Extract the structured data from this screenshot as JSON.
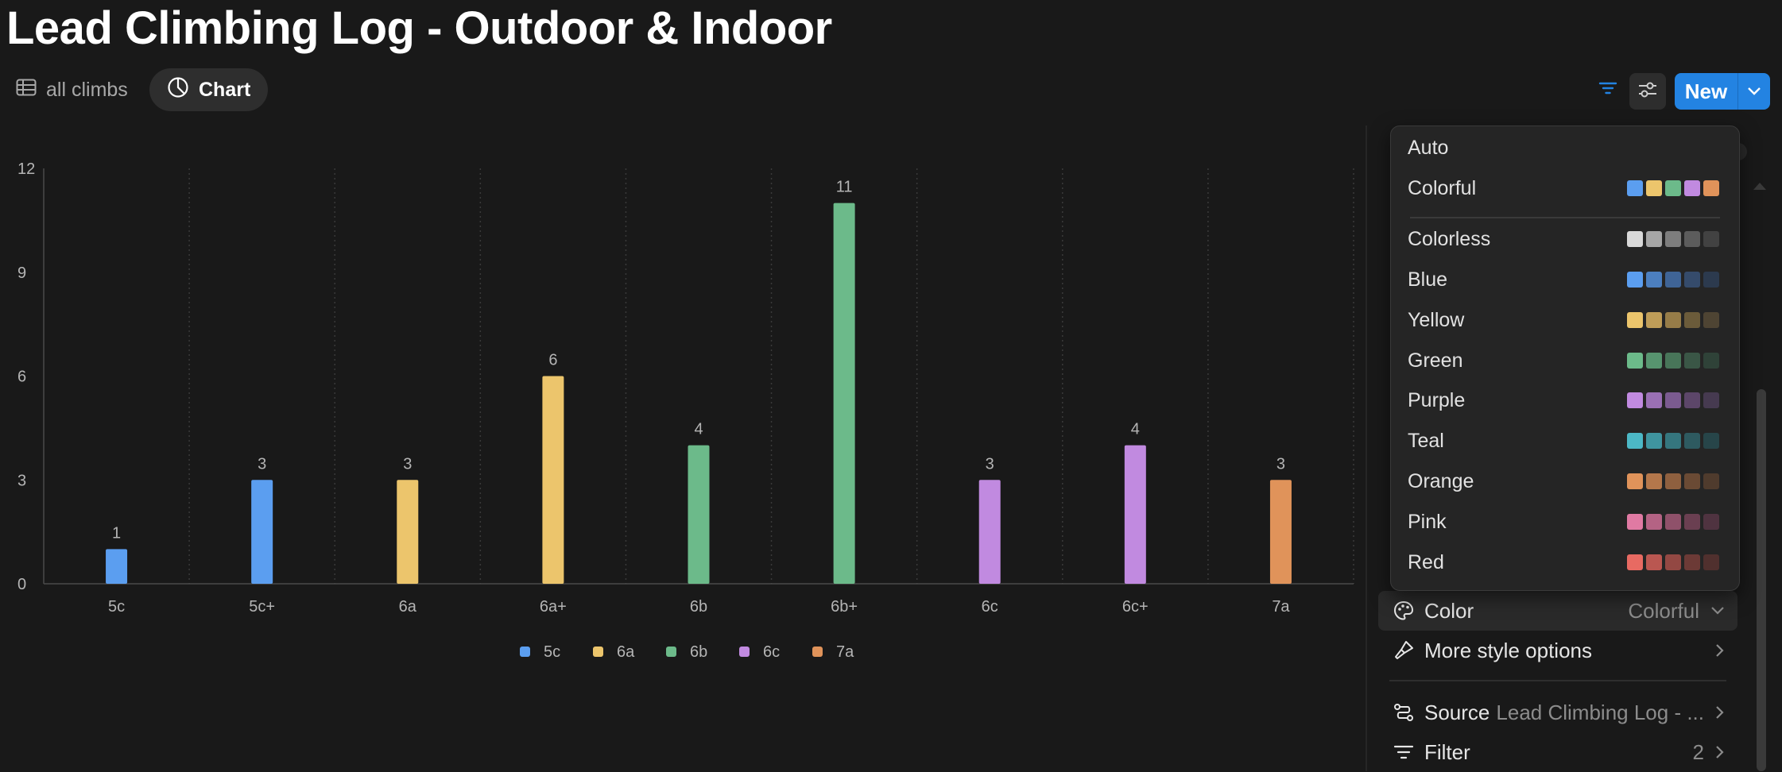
{
  "page": {
    "title": "Lead Climbing Log - Outdoor & Indoor"
  },
  "tabs": [
    {
      "label": "all climbs",
      "icon": "table-icon"
    },
    {
      "label": "Chart",
      "icon": "pie-chart-icon"
    }
  ],
  "toolbar": {
    "filter_icon": "filter-icon",
    "settings_icon": "sliders-icon",
    "new_label": "New"
  },
  "chart_data": {
    "type": "bar",
    "categories": [
      "5c",
      "5c+",
      "6a",
      "6a+",
      "6b",
      "6b+",
      "6c",
      "6c+",
      "7a"
    ],
    "values": [
      1,
      3,
      3,
      6,
      4,
      11,
      3,
      4,
      3
    ],
    "ylim": [
      0,
      12
    ],
    "yticks": [
      0,
      3,
      6,
      9,
      12
    ],
    "bar_colors": [
      "#5b9ef0",
      "#5b9ef0",
      "#ecc56c",
      "#ecc56c",
      "#6cba8a",
      "#6cba8a",
      "#c18ae0",
      "#c18ae0",
      "#e0935a"
    ],
    "legend": [
      {
        "label": "5c",
        "color": "#5b9ef0"
      },
      {
        "label": "6a",
        "color": "#ecc56c"
      },
      {
        "label": "6b",
        "color": "#6cba8a"
      },
      {
        "label": "6c",
        "color": "#c18ae0"
      },
      {
        "label": "7a",
        "color": "#e0935a"
      }
    ],
    "legend_position": "bottom-center",
    "grid": "vertical dotted"
  },
  "color_menu": {
    "items": [
      {
        "name": "Auto",
        "swatches": []
      },
      {
        "name": "Colorful",
        "swatches": [
          "#5b9ef0",
          "#ecc56c",
          "#6cba8a",
          "#c18ae0",
          "#e0935a"
        ]
      },
      {
        "name": "Colorless",
        "swatches": [
          "#d9d9d9",
          "#a6a6a6",
          "#7d7d7d",
          "#5c5c5c",
          "#424242"
        ]
      },
      {
        "name": "Blue",
        "swatches": [
          "#5b9ef0",
          "#4c7fbf",
          "#3f6496",
          "#354b6b",
          "#2c3a4e"
        ]
      },
      {
        "name": "Yellow",
        "swatches": [
          "#ecc56c",
          "#bf9d58",
          "#967c48",
          "#6b5b3a",
          "#4e4433"
        ]
      },
      {
        "name": "Green",
        "swatches": [
          "#6cba8a",
          "#57946f",
          "#487559",
          "#3a5646",
          "#2f4238"
        ]
      },
      {
        "name": "Purple",
        "swatches": [
          "#c18ae0",
          "#9a70b4",
          "#7b5b90",
          "#5c4669",
          "#463a50"
        ]
      },
      {
        "name": "Teal",
        "swatches": [
          "#4cb8c6",
          "#3f949f",
          "#35767e",
          "#2e5a60",
          "#274549"
        ]
      },
      {
        "name": "Orange",
        "swatches": [
          "#e0935a",
          "#b4774b",
          "#8f603f",
          "#6a4a34",
          "#4f3b2d"
        ]
      },
      {
        "name": "Pink",
        "swatches": [
          "#e07aa3",
          "#b46384",
          "#8f516a",
          "#6a3f51",
          "#4f3340"
        ]
      },
      {
        "name": "Red",
        "swatches": [
          "#e86a62",
          "#ba5751",
          "#934843",
          "#6c3a36",
          "#50302e"
        ]
      }
    ]
  },
  "panel": {
    "color": {
      "label": "Color",
      "value": "Colorful"
    },
    "more": {
      "label": "More style options"
    },
    "source": {
      "label": "Source",
      "value": "Lead Climbing Log - ..."
    },
    "filter": {
      "label": "Filter",
      "value": "2"
    }
  }
}
